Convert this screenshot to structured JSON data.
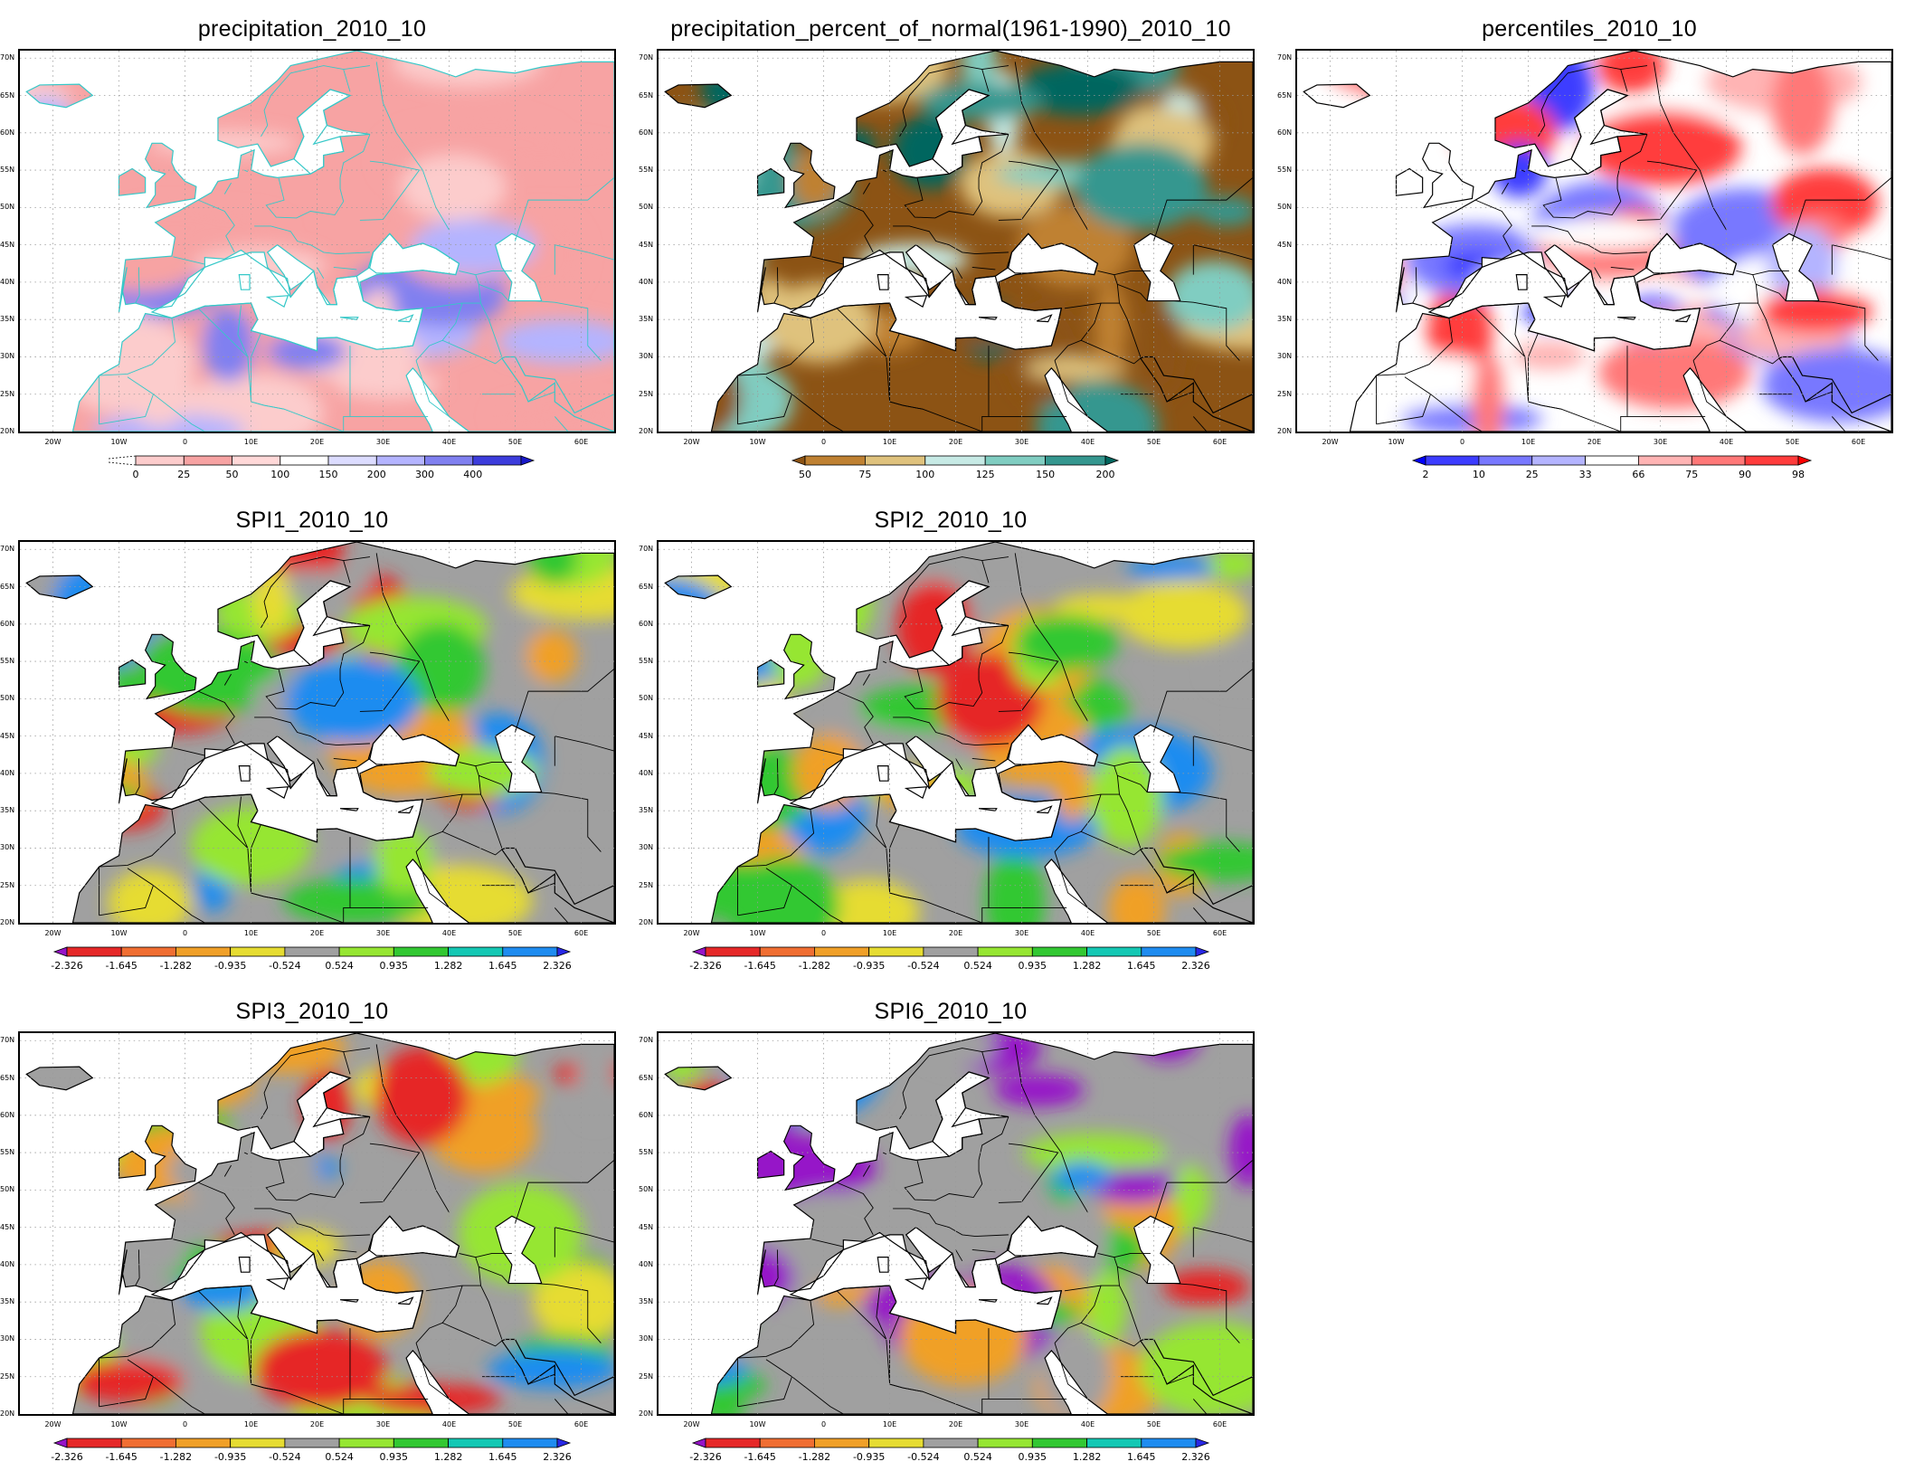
{
  "lat_labels": [
    "70N",
    "65N",
    "60N",
    "55N",
    "50N",
    "45N",
    "40N",
    "35N",
    "30N",
    "25N",
    "20N"
  ],
  "lon_labels": [
    "20W",
    "10W",
    "0",
    "10E",
    "20E",
    "30E",
    "40E",
    "50E",
    "60E"
  ],
  "panels": [
    {
      "id": "precip",
      "title": "precipitation_2010_10",
      "colorbar": {
        "ticks": [
          "0",
          "25",
          "50",
          "100",
          "150",
          "200",
          "300",
          "400"
        ],
        "colors": [
          "#fccccc",
          "#f7a3a3",
          "#ffd8d8",
          "#ffffff",
          "#dcdcff",
          "#b4b4ff",
          "#8080f0",
          "#3c3cdc",
          "#1818c8"
        ],
        "arrow_right": true,
        "arrow_left": false
      },
      "palette": [
        "#f7a3a3",
        "#f7a3a3",
        "#fccccc",
        "#fccccc",
        "#f7a3a3",
        "#b4b4ff",
        "#8080f0",
        "#fccccc"
      ],
      "coast_color": "#35c8c8"
    },
    {
      "id": "pnorm",
      "title": "precipitation_percent_of_normal(1961-1990)_2010_10",
      "colorbar": {
        "ticks": [
          "50",
          "75",
          "100",
          "125",
          "150",
          "200"
        ],
        "colors": [
          "#8c5314",
          "#bf8132",
          "#dfc27d",
          "#c7eae5",
          "#80cdc1",
          "#35978f",
          "#01665e"
        ],
        "arrow_right": true,
        "arrow_left": true
      },
      "palette": [
        "#8c5314",
        "#bf8132",
        "#dfc27d",
        "#c7eae5",
        "#80cdc1",
        "#35978f",
        "#01665e",
        "#8c5314"
      ],
      "coast_color": "#000000"
    },
    {
      "id": "pct",
      "title": "percentiles_2010_10",
      "colorbar": {
        "ticks": [
          "2",
          "10",
          "25",
          "33",
          "66",
          "75",
          "90",
          "98"
        ],
        "colors": [
          "#0000ff",
          "#3c3cff",
          "#7878ff",
          "#b4b4ff",
          "#ffffff",
          "#ffb4b4",
          "#ff7878",
          "#ff3c3c",
          "#ff0000"
        ],
        "arrow_right": true,
        "arrow_left": true
      },
      "palette": [
        "#ffffff",
        "#ff7878",
        "#7878ff",
        "#ff3c3c",
        "#b4b4ff",
        "#ffb4b4",
        "#3c3cff",
        "#ffffff"
      ],
      "coast_color": "#000000"
    },
    {
      "id": "spi1",
      "title": "SPI1_2010_10",
      "colorbar": {
        "ticks": [
          "-2.326",
          "-1.645",
          "-1.282",
          "-0.935",
          "-0.524",
          "0.524",
          "0.935",
          "1.282",
          "1.645",
          "2.326"
        ],
        "colors": [
          "#9614c8",
          "#e62828",
          "#f06e32",
          "#f0a028",
          "#e6dc32",
          "#a0a0a0",
          "#96e632",
          "#32c832",
          "#14c8b4",
          "#1e8cf0",
          "#2828e6"
        ],
        "arrow_right": true,
        "arrow_left": true
      },
      "palette": [
        "#a0a0a0",
        "#96e632",
        "#32c832",
        "#1e8cf0",
        "#e6dc32",
        "#f0a028",
        "#a0a0a0",
        "#e62828"
      ],
      "coast_color": "#000000"
    },
    {
      "id": "spi2",
      "title": "SPI2_2010_10",
      "colorbar": {
        "ticks": [
          "-2.326",
          "-1.645",
          "-1.282",
          "-0.935",
          "-0.524",
          "0.524",
          "0.935",
          "1.282",
          "1.645",
          "2.326"
        ],
        "colors": [
          "#9614c8",
          "#e62828",
          "#f06e32",
          "#f0a028",
          "#e6dc32",
          "#a0a0a0",
          "#96e632",
          "#32c832",
          "#14c8b4",
          "#1e8cf0",
          "#2828e6"
        ],
        "arrow_right": true,
        "arrow_left": true
      },
      "palette": [
        "#a0a0a0",
        "#96e632",
        "#e6dc32",
        "#1e8cf0",
        "#32c832",
        "#f0a028",
        "#a0a0a0",
        "#e62828"
      ],
      "coast_color": "#000000"
    },
    {
      "id": "spi3",
      "title": "SPI3_2010_10",
      "colorbar": {
        "ticks": [
          "-2.326",
          "-1.645",
          "-1.282",
          "-0.935",
          "-0.524",
          "0.524",
          "0.935",
          "1.282",
          "1.645",
          "2.326"
        ],
        "colors": [
          "#9614c8",
          "#e62828",
          "#f06e32",
          "#f0a028",
          "#e6dc32",
          "#a0a0a0",
          "#96e632",
          "#32c832",
          "#14c8b4",
          "#1e8cf0",
          "#2828e6"
        ],
        "arrow_right": true,
        "arrow_left": true
      },
      "palette": [
        "#a0a0a0",
        "#e6dc32",
        "#f0a028",
        "#1e8cf0",
        "#32c832",
        "#96e632",
        "#a0a0a0",
        "#e62828"
      ],
      "coast_color": "#000000"
    },
    {
      "id": "spi6",
      "title": "SPI6_2010_10",
      "colorbar": {
        "ticks": [
          "-2.326",
          "-1.645",
          "-1.282",
          "-0.935",
          "-0.524",
          "0.524",
          "0.935",
          "1.282",
          "1.645",
          "2.326"
        ],
        "colors": [
          "#9614c8",
          "#e62828",
          "#f06e32",
          "#f0a028",
          "#e6dc32",
          "#a0a0a0",
          "#96e632",
          "#32c832",
          "#14c8b4",
          "#1e8cf0",
          "#2828e6"
        ],
        "arrow_right": true,
        "arrow_left": true
      },
      "palette": [
        "#a0a0a0",
        "#96e632",
        "#1e8cf0",
        "#32c832",
        "#e62828",
        "#f0a028",
        "#a0a0a0",
        "#9614c8"
      ],
      "coast_color": "#000000"
    }
  ]
}
